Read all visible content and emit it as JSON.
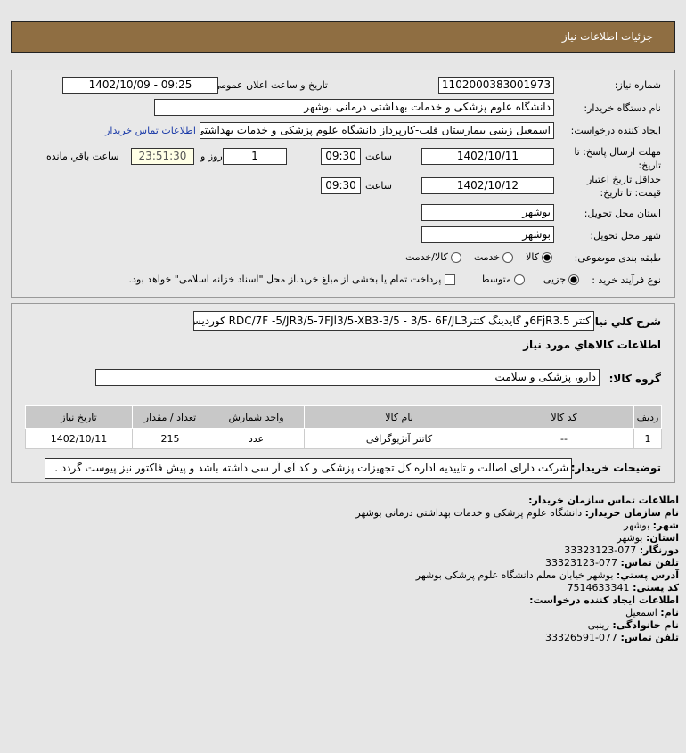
{
  "header": {
    "title": "جزئیات اطلاعات نیاز"
  },
  "form": {
    "need_number_label": "شماره نیاز:",
    "need_number": "1102000383001973",
    "announce_label": "تاریخ و ساعت اعلان عمومی:",
    "announce_value": "1402/10/09 - 09:25",
    "buyer_org_label": "نام دستگاه خریدار:",
    "buyer_org": "دانشگاه علوم پزشکی و خدمات بهداشتی درمانی بوشهر",
    "creator_label": "ایجاد کننده درخواست:",
    "creator": "اسمعیل زینبی بیمارستان قلب-کارپرداز دانشگاه علوم پزشکی و خدمات بهداشتی",
    "contact_link": "اطلاعات تماس خریدار",
    "deadline_label_1": "مهلت ارسال پاسخ: تا",
    "deadline_label_2": "تاریخ:",
    "deadline_date": "1402/10/11",
    "time_label": "ساعت",
    "deadline_time": "09:30",
    "days": "1",
    "days_label": "روز و",
    "remaining": "23:51:30",
    "remaining_label": "ساعت باقي مانده",
    "validity_label_1": "حداقل تاریخ اعتبار",
    "validity_label_2": "قیمت: تا تاریخ:",
    "validity_date": "1402/10/12",
    "validity_time": "09:30",
    "province_label": "استان محل تحویل:",
    "province": "بوشهر",
    "city_label": "شهر محل تحویل:",
    "city": "بوشهر",
    "category_label": "طبقه بندی موضوعی:",
    "category_options": [
      "کالا",
      "خدمت",
      "کالا/خدمت"
    ],
    "category_selected": "کالا",
    "process_label": "نوع فرآیند خرید :",
    "process_options": [
      "جزیی",
      "متوسط"
    ],
    "process_selected": "جزیی",
    "treasury_text": "پرداخت تمام یا بخشی از مبلغ خرید،از محل \"اسناد خزانه اسلامی\" خواهد بود."
  },
  "details": {
    "summary_label": "شرح کلي نیاز:",
    "summary": "کتتر 6FjR3.5و گایدینگ کتترRDC/7F -5/JR3/5-7FJl3/5-XB3-3/5 - 3/5- 6F/JL3 کوردیس",
    "goods_info_title": "اطلاعات کالاهاي مورد نياز",
    "group_label": "گروه کالا:",
    "group": "دارو، پزشکی و سلامت",
    "table": {
      "headers": [
        "ردیف",
        "کد کالا",
        "نام کالا",
        "واحد شمارش",
        "تعداد / مقدار",
        "تاریخ نیاز"
      ],
      "rows": [
        [
          "1",
          "--",
          "کاتتر آنژیوگرافی",
          "عدد",
          "215",
          "1402/10/11"
        ]
      ]
    },
    "notes_label": "توضیحات خریدار:",
    "notes": "شرکت دارای اصالت و تاییدیه اداره کل تجهیزات پزشکی و کد آی آر سی داشته باشد و پیش فاکتور نیز پیوست گردد ."
  },
  "contact": {
    "title": "اطلاعات تماس سازمان خریدار:",
    "org_label": "نام سازمان خریدار:",
    "org": "دانشگاه علوم پزشکی و خدمات بهداشتی درمانی بوشهر",
    "city_label": "شهر:",
    "city": "بوشهر",
    "province_label": "استان:",
    "province": "بوشهر",
    "fax_label": "دورنگار:",
    "fax": "077-33323123",
    "phone_label": "تلفن تماس:",
    "phone": "077-33323123",
    "address_label": "آدرس پستي:",
    "address": "بوشهر خیابان معلم دانشگاه علوم پزشکی بوشهر",
    "postal_label": "کد پستي:",
    "postal": "7514633341",
    "creator_title": "اطلاعات ایجاد کننده درخواست:",
    "name_label": "نام:",
    "name": "اسمعیل",
    "family_label": "نام خانوادگی:",
    "family": "زینبی",
    "creator_phone_label": "تلفن تماس:",
    "creator_phone": "077-33326591"
  }
}
